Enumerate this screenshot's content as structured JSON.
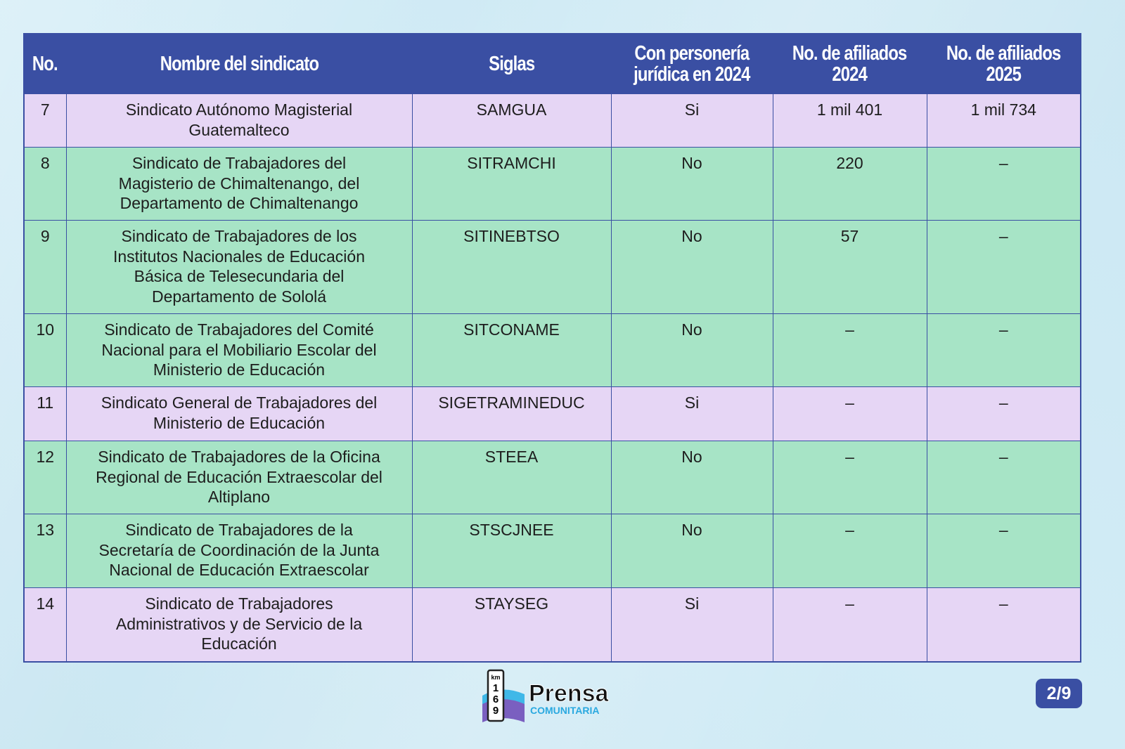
{
  "colors": {
    "header": "#3a4fa3",
    "row_purple": "#e6d6f5",
    "row_green": "#a7e4c6",
    "background": "#d2ecf6"
  },
  "table": {
    "headers": [
      "No.",
      "Nombre del sindicato",
      "Siglas",
      "Con personería\njurídica en 2024",
      "No. de afiliados\n2024",
      "No. de afiliados\n2025"
    ],
    "rows": [
      {
        "no": "7",
        "name": "Sindicato Autónomo Magisterial\nGuatemalteco",
        "siglas": "SAMGUA",
        "personeria": "Si",
        "af2024": "1 mil 401",
        "af2025": "1 mil 734",
        "color": "purple"
      },
      {
        "no": "8",
        "name": "Sindicato de Trabajadores del\nMagisterio de Chimaltenango, del\nDepartamento de Chimaltenango",
        "siglas": "SITRAMCHI",
        "personeria": "No",
        "af2024": "220",
        "af2025": "–",
        "color": "green"
      },
      {
        "no": "9",
        "name": "Sindicato de Trabajadores de los\nInstitutos Nacionales de Educación\nBásica de Telesecundaria del\nDepartamento de Sololá",
        "siglas": "SITINEBTSO",
        "personeria": "No",
        "af2024": "57",
        "af2025": "–",
        "color": "green"
      },
      {
        "no": "10",
        "name": "Sindicato de Trabajadores del Comité\nNacional para el Mobiliario Escolar del\nMinisterio de Educación",
        "siglas": "SITCONAME",
        "personeria": "No",
        "af2024": "–",
        "af2025": "–",
        "color": "green"
      },
      {
        "no": "11",
        "name": "Sindicato General de Trabajadores del\nMinisterio de Educación",
        "siglas": "SIGETRAMINEDUC",
        "personeria": "Si",
        "af2024": "–",
        "af2025": "–",
        "color": "purple"
      },
      {
        "no": "12",
        "name": "Sindicato de Trabajadores de la Oficina\nRegional de Educación Extraescolar del\nAltiplano",
        "siglas": "STEEA",
        "personeria": "No",
        "af2024": "–",
        "af2025": "–",
        "color": "green"
      },
      {
        "no": "13",
        "name": "Sindicato de Trabajadores de la\nSecretaría de Coordinación de la Junta\nNacional de Educación Extraescolar",
        "siglas": "STSCJNEE",
        "personeria": "No",
        "af2024": "–",
        "af2025": "–",
        "color": "green"
      },
      {
        "no": "14",
        "name": "Sindicato de Trabajadores\nAdministrativos y de Servicio de la\nEducación",
        "siglas": "STAYSEG",
        "personeria": "Si",
        "af2024": "–",
        "af2025": "–",
        "color": "purple"
      }
    ]
  },
  "footer": {
    "logo_text": "Prensa",
    "logo_sub": "COMUNITARIA",
    "logo_km": "km",
    "logo_digits": [
      "1",
      "6",
      "9"
    ],
    "page": "2/9"
  }
}
